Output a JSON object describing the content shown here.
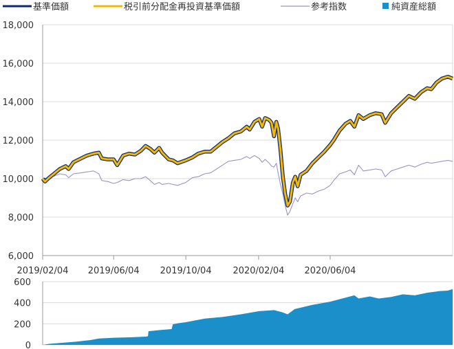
{
  "chart_data": [
    {
      "type": "line",
      "x_tick_labels": [
        "2019/02/04",
        "2019/06/04",
        "2019/10/04",
        "2020/02/04",
        "2020/06/04"
      ],
      "y_tick_labels": [
        "6,000",
        "8,000",
        "10,000",
        "12,000",
        "14,000",
        "16,000",
        "18,000"
      ],
      "ylim": [
        6000,
        18000
      ],
      "xlim": [
        "2019/02/04",
        "2020/12/28"
      ],
      "grid": "horizontal",
      "legend_position": "top",
      "series": [
        {
          "name": "基準価額",
          "color": "#0b2a6f",
          "points": [
            [
              "2019/02/04",
              10000
            ],
            [
              "2019/02/08",
              9850
            ],
            [
              "2019/02/15",
              10050
            ],
            [
              "2019/02/25",
              10300
            ],
            [
              "2019/03/05",
              10500
            ],
            [
              "2019/03/15",
              10650
            ],
            [
              "2019/03/20",
              10500
            ],
            [
              "2019/03/28",
              10850
            ],
            [
              "2019/04/10",
              11050
            ],
            [
              "2019/04/20",
              11200
            ],
            [
              "2019/05/01",
              11300
            ],
            [
              "2019/05/10",
              11350
            ],
            [
              "2019/05/15",
              11050
            ],
            [
              "2019/05/25",
              11000
            ],
            [
              "2019/06/04",
              11000
            ],
            [
              "2019/06/10",
              10700
            ],
            [
              "2019/06/20",
              11200
            ],
            [
              "2019/06/30",
              11300
            ],
            [
              "2019/07/10",
              11250
            ],
            [
              "2019/07/20",
              11450
            ],
            [
              "2019/07/28",
              11700
            ],
            [
              "2019/08/05",
              11550
            ],
            [
              "2019/08/12",
              11350
            ],
            [
              "2019/08/20",
              11600
            ],
            [
              "2019/08/25",
              11350
            ],
            [
              "2019/09/05",
              11000
            ],
            [
              "2019/09/12",
              10950
            ],
            [
              "2019/09/20",
              10800
            ],
            [
              "2019/10/04",
              10950
            ],
            [
              "2019/10/15",
              11100
            ],
            [
              "2019/10/25",
              11300
            ],
            [
              "2019/11/05",
              11400
            ],
            [
              "2019/11/15",
              11400
            ],
            [
              "2019/11/25",
              11650
            ],
            [
              "2019/12/05",
              11900
            ],
            [
              "2019/12/15",
              12100
            ],
            [
              "2019/12/25",
              12350
            ],
            [
              "2020/01/05",
              12450
            ],
            [
              "2020/01/15",
              12700
            ],
            [
              "2020/01/20",
              12550
            ],
            [
              "2020/01/28",
              12950
            ],
            [
              "2020/02/05",
              13100
            ],
            [
              "2020/02/10",
              12700
            ],
            [
              "2020/02/15",
              13150
            ],
            [
              "2020/02/22",
              13050
            ],
            [
              "2020/02/26",
              12900
            ],
            [
              "2020/03/01",
              12200
            ],
            [
              "2020/03/05",
              12950
            ],
            [
              "2020/03/08",
              12600
            ],
            [
              "2020/03/12",
              11500
            ],
            [
              "2020/03/16",
              10100
            ],
            [
              "2020/03/20",
              9200
            ],
            [
              "2020/03/24",
              8600
            ],
            [
              "2020/03/28",
              8800
            ],
            [
              "2020/04/02",
              9800
            ],
            [
              "2020/04/06",
              10100
            ],
            [
              "2020/04/10",
              9600
            ],
            [
              "2020/04/15",
              10200
            ],
            [
              "2020/04/25",
              10400
            ],
            [
              "2020/05/05",
              10800
            ],
            [
              "2020/05/15",
              11100
            ],
            [
              "2020/05/25",
              11400
            ],
            [
              "2020/06/04",
              11750
            ],
            [
              "2020/06/10",
              12000
            ],
            [
              "2020/06/20",
              12500
            ],
            [
              "2020/06/30",
              12850
            ],
            [
              "2020/07/08",
              13000
            ],
            [
              "2020/07/15",
              12700
            ],
            [
              "2020/07/22",
              13300
            ],
            [
              "2020/07/30",
              13100
            ],
            [
              "2020/08/10",
              13300
            ],
            [
              "2020/08/20",
              13400
            ],
            [
              "2020/08/30",
              13350
            ],
            [
              "2020/09/05",
              12900
            ],
            [
              "2020/09/15",
              13400
            ],
            [
              "2020/09/25",
              13700
            ],
            [
              "2020/10/05",
              14000
            ],
            [
              "2020/10/15",
              14300
            ],
            [
              "2020/10/25",
              14150
            ],
            [
              "2020/11/05",
              14500
            ],
            [
              "2020/11/15",
              14700
            ],
            [
              "2020/11/22",
              14650
            ],
            [
              "2020/12/01",
              15000
            ],
            [
              "2020/12/10",
              15200
            ],
            [
              "2020/12/20",
              15300
            ],
            [
              "2020/12/28",
              15200
            ]
          ]
        },
        {
          "name": "税引前分配金再投資基準価額",
          "color": "#f5b800",
          "same_as": "基準価額"
        },
        {
          "name": "参考指数",
          "color": "#9a93c6",
          "points": [
            [
              "2019/02/04",
              10000
            ],
            [
              "2019/02/15",
              10050
            ],
            [
              "2019/02/25",
              10150
            ],
            [
              "2019/03/05",
              10250
            ],
            [
              "2019/03/15",
              10200
            ],
            [
              "2019/03/20",
              10050
            ],
            [
              "2019/03/28",
              10250
            ],
            [
              "2019/04/10",
              10300
            ],
            [
              "2019/04/20",
              10350
            ],
            [
              "2019/05/01",
              10400
            ],
            [
              "2019/05/10",
              10250
            ],
            [
              "2019/05/15",
              9900
            ],
            [
              "2019/05/25",
              9850
            ],
            [
              "2019/06/04",
              9750
            ],
            [
              "2019/06/10",
              9800
            ],
            [
              "2019/06/20",
              9950
            ],
            [
              "2019/06/30",
              9900
            ],
            [
              "2019/07/10",
              10000
            ],
            [
              "2019/07/20",
              10000
            ],
            [
              "2019/07/28",
              10100
            ],
            [
              "2019/08/05",
              9900
            ],
            [
              "2019/08/12",
              9700
            ],
            [
              "2019/08/20",
              9800
            ],
            [
              "2019/08/25",
              9700
            ],
            [
              "2019/09/05",
              9750
            ],
            [
              "2019/09/12",
              9700
            ],
            [
              "2019/09/20",
              9650
            ],
            [
              "2019/10/04",
              9800
            ],
            [
              "2019/10/15",
              10050
            ],
            [
              "2019/10/25",
              10100
            ],
            [
              "2019/11/05",
              10250
            ],
            [
              "2019/11/15",
              10300
            ],
            [
              "2019/11/25",
              10500
            ],
            [
              "2019/12/05",
              10700
            ],
            [
              "2019/12/15",
              10900
            ],
            [
              "2019/12/25",
              10950
            ],
            [
              "2020/01/05",
              11000
            ],
            [
              "2020/01/15",
              11150
            ],
            [
              "2020/01/20",
              11050
            ],
            [
              "2020/01/28",
              11200
            ],
            [
              "2020/02/05",
              11050
            ],
            [
              "2020/02/10",
              10850
            ],
            [
              "2020/02/15",
              11000
            ],
            [
              "2020/02/22",
              10800
            ],
            [
              "2020/02/26",
              10650
            ],
            [
              "2020/03/01",
              10600
            ],
            [
              "2020/03/05",
              10800
            ],
            [
              "2020/03/08",
              10300
            ],
            [
              "2020/03/12",
              9700
            ],
            [
              "2020/03/16",
              9200
            ],
            [
              "2020/03/20",
              8600
            ],
            [
              "2020/03/24",
              8100
            ],
            [
              "2020/03/28",
              8300
            ],
            [
              "2020/04/02",
              8700
            ],
            [
              "2020/04/06",
              9000
            ],
            [
              "2020/04/10",
              8800
            ],
            [
              "2020/04/15",
              9100
            ],
            [
              "2020/04/25",
              9250
            ],
            [
              "2020/05/05",
              9200
            ],
            [
              "2020/05/15",
              9350
            ],
            [
              "2020/05/25",
              9450
            ],
            [
              "2020/06/04",
              9650
            ],
            [
              "2020/06/10",
              9900
            ],
            [
              "2020/06/20",
              10250
            ],
            [
              "2020/06/30",
              10350
            ],
            [
              "2020/07/08",
              10450
            ],
            [
              "2020/07/15",
              10200
            ],
            [
              "2020/07/22",
              10700
            ],
            [
              "2020/07/30",
              10400
            ],
            [
              "2020/08/10",
              10450
            ],
            [
              "2020/08/20",
              10500
            ],
            [
              "2020/08/30",
              10450
            ],
            [
              "2020/09/05",
              10100
            ],
            [
              "2020/09/15",
              10400
            ],
            [
              "2020/09/25",
              10500
            ],
            [
              "2020/10/05",
              10600
            ],
            [
              "2020/10/15",
              10700
            ],
            [
              "2020/10/25",
              10600
            ],
            [
              "2020/11/05",
              10750
            ],
            [
              "2020/11/15",
              10850
            ],
            [
              "2020/11/22",
              10800
            ],
            [
              "2020/12/01",
              10850
            ],
            [
              "2020/12/10",
              10900
            ],
            [
              "2020/12/20",
              10950
            ],
            [
              "2020/12/28",
              10900
            ]
          ]
        }
      ]
    },
    {
      "type": "area",
      "y_tick_labels": [
        "0",
        "200",
        "400",
        "600"
      ],
      "ylim": [
        0,
        600
      ],
      "grid": "horizontal",
      "series": [
        {
          "name": "純資産総額",
          "color": "#1a8fc9",
          "points": [
            [
              "2019/02/04",
              0
            ],
            [
              "2019/02/15",
              10
            ],
            [
              "2019/03/05",
              18
            ],
            [
              "2019/04/01",
              30
            ],
            [
              "2019/04/25",
              45
            ],
            [
              "2019/05/10",
              60
            ],
            [
              "2019/06/04",
              68
            ],
            [
              "2019/07/01",
              72
            ],
            [
              "2019/07/28",
              78
            ],
            [
              "2019/08/01",
              82
            ],
            [
              "2019/08/02",
              130
            ],
            [
              "2019/08/20",
              140
            ],
            [
              "2019/09/10",
              150
            ],
            [
              "2019/09/12",
              195
            ],
            [
              "2019/09/20",
              205
            ],
            [
              "2019/10/04",
              215
            ],
            [
              "2019/11/05",
              250
            ],
            [
              "2019/12/05",
              265
            ],
            [
              "2020/01/05",
              290
            ],
            [
              "2020/02/05",
              320
            ],
            [
              "2020/03/01",
              330
            ],
            [
              "2020/03/15",
              310
            ],
            [
              "2020/03/24",
              290
            ],
            [
              "2020/04/05",
              340
            ],
            [
              "2020/05/05",
              380
            ],
            [
              "2020/06/04",
              410
            ],
            [
              "2020/07/01",
              450
            ],
            [
              "2020/07/15",
              470
            ],
            [
              "2020/07/22",
              440
            ],
            [
              "2020/08/10",
              460
            ],
            [
              "2020/08/25",
              440
            ],
            [
              "2020/09/15",
              455
            ],
            [
              "2020/10/05",
              480
            ],
            [
              "2020/10/25",
              470
            ],
            [
              "2020/11/15",
              495
            ],
            [
              "2020/12/05",
              510
            ],
            [
              "2020/12/20",
              515
            ],
            [
              "2020/12/28",
              530
            ]
          ]
        }
      ]
    }
  ]
}
